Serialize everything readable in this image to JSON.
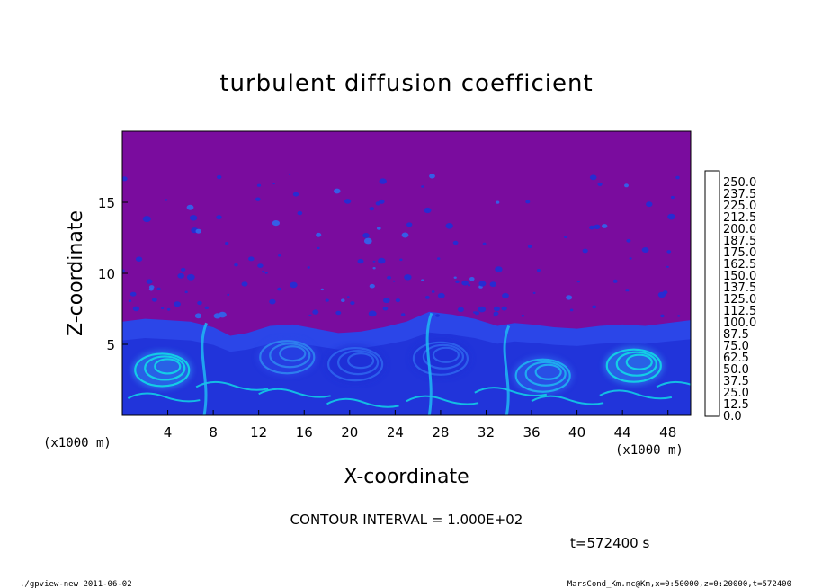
{
  "chart_data": {
    "type": "heatmap",
    "title": "turbulent diffusion coefficient",
    "xlabel": "X-coordinate",
    "ylabel": "Z-coordinate",
    "x_unit": "(x1000 m)",
    "y_unit": "(x1000 m)",
    "xlim": [
      0,
      50
    ],
    "ylim": [
      0,
      20
    ],
    "x_ticks": [
      4,
      8,
      12,
      16,
      20,
      24,
      28,
      32,
      36,
      40,
      44,
      48
    ],
    "y_ticks": [
      5,
      10,
      15
    ],
    "colorbar": {
      "levels": [
        "0.0",
        "12.5",
        "25.0",
        "37.5",
        "50.0",
        "62.5",
        "75.0",
        "87.5",
        "100.0",
        "112.5",
        "125.0",
        "137.5",
        "150.0",
        "162.5",
        "175.0",
        "187.5",
        "200.0",
        "212.5",
        "225.0",
        "237.5",
        "250.0"
      ],
      "colors": [
        "#7a0c9e",
        "#1a0ea8",
        "#1f2fd6",
        "#2b46e8",
        "#2f66ee",
        "#2f88f0",
        "#1fb8f2",
        "#10e0e6",
        "#16e8a0",
        "#18e66a",
        "#20e83a",
        "#2ee61e",
        "#6ce81a",
        "#a8ea18",
        "#dcec16",
        "#ffe21c",
        "#ffb41c",
        "#ff7a18",
        "#ff3a14",
        "#f8306a",
        "#f37f89"
      ]
    },
    "background_color": "#7a0c9e",
    "contour_interval": "CONTOUR INTERVAL = 1.000E+02",
    "time_label": "t=572400 s",
    "surface_layer_depth_profile": [
      {
        "x": 0.0,
        "z": 6.6
      },
      {
        "x": 2.0,
        "z": 6.8
      },
      {
        "x": 4.0,
        "z": 6.7
      },
      {
        "x": 6.0,
        "z": 6.6
      },
      {
        "x": 8.0,
        "z": 6.2
      },
      {
        "x": 9.5,
        "z": 5.6
      },
      {
        "x": 11.0,
        "z": 5.8
      },
      {
        "x": 13.0,
        "z": 6.3
      },
      {
        "x": 15.0,
        "z": 6.4
      },
      {
        "x": 17.0,
        "z": 6.1
      },
      {
        "x": 19.0,
        "z": 5.8
      },
      {
        "x": 21.0,
        "z": 5.9
      },
      {
        "x": 23.0,
        "z": 6.2
      },
      {
        "x": 25.0,
        "z": 6.6
      },
      {
        "x": 27.0,
        "z": 7.3
      },
      {
        "x": 29.0,
        "z": 7.1
      },
      {
        "x": 31.0,
        "z": 6.8
      },
      {
        "x": 33.0,
        "z": 6.3
      },
      {
        "x": 34.5,
        "z": 6.5
      },
      {
        "x": 36.0,
        "z": 6.4
      },
      {
        "x": 38.0,
        "z": 6.2
      },
      {
        "x": 40.0,
        "z": 6.1
      },
      {
        "x": 42.0,
        "z": 6.3
      },
      {
        "x": 44.0,
        "z": 6.4
      },
      {
        "x": 46.0,
        "z": 6.3
      },
      {
        "x": 48.0,
        "z": 6.5
      },
      {
        "x": 50.0,
        "z": 6.7
      }
    ],
    "eddies": [
      {
        "x": 3.5,
        "z": 3.2,
        "level": 7
      },
      {
        "x": 14.5,
        "z": 4.1,
        "level": 5
      },
      {
        "x": 20.5,
        "z": 3.6,
        "level": 4
      },
      {
        "x": 28.0,
        "z": 4.0,
        "level": 4
      },
      {
        "x": 37.0,
        "z": 2.8,
        "level": 6
      },
      {
        "x": 45.0,
        "z": 3.5,
        "level": 7
      }
    ]
  },
  "footer": {
    "left": "./gpview-new  2011-06-02",
    "right": "MarsCond_Km.nc@Km,x=0:50000,z=0:20000,t=572400"
  }
}
